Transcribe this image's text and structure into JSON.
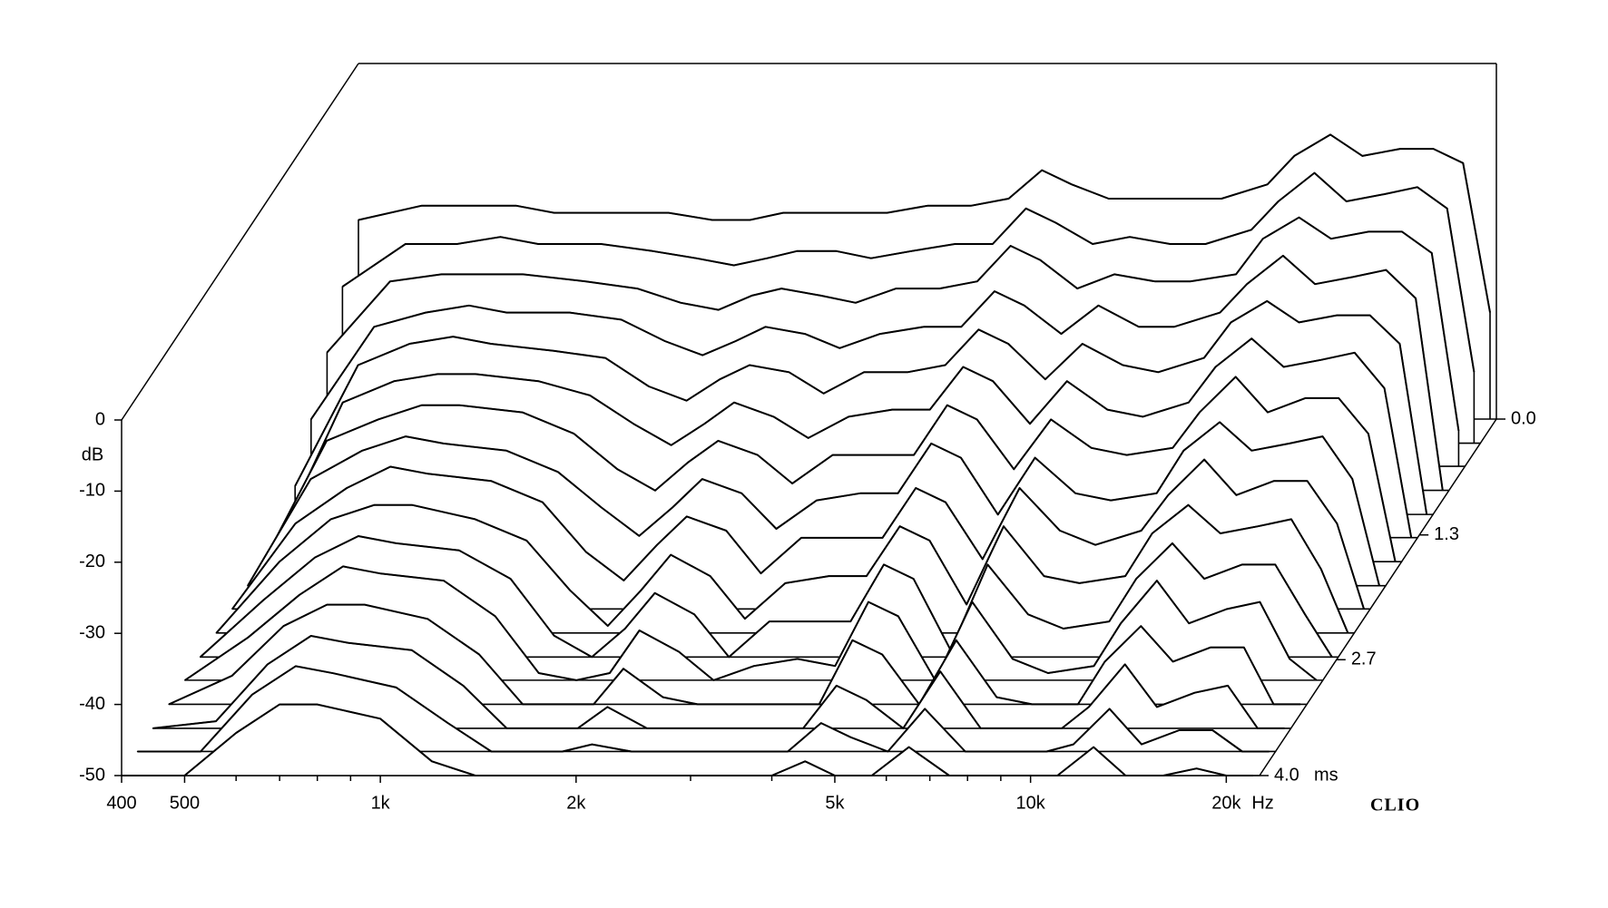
{
  "chart_data": {
    "type": "waterfall",
    "ylabel": "dB",
    "xunit": "Hz",
    "zunit": "ms",
    "brand": "CLIO",
    "xscale": "log",
    "xlim": [
      400,
      22500
    ],
    "ylim": [
      -50,
      0
    ],
    "zlim": [
      0,
      4
    ],
    "xticks": [
      400,
      500,
      {
        "value": 1000,
        "label": "1k"
      },
      {
        "value": 2000,
        "label": "2k"
      },
      {
        "value": 5000,
        "label": "5k"
      },
      {
        "value": 10000,
        "label": "10k"
      },
      {
        "value": 20000,
        "label": "20k"
      }
    ],
    "xminorticks": [
      600,
      700,
      800,
      900,
      3000,
      4000,
      6000,
      7000,
      8000,
      9000
    ],
    "yticks": [
      0,
      -10,
      -20,
      -30,
      -40,
      -50
    ],
    "zticks": [
      {
        "value": 0,
        "label": "0.0"
      },
      {
        "value": 1.3,
        "label": "1.3"
      },
      {
        "value": 2.7,
        "label": "2.7"
      },
      {
        "value": 4,
        "label": "4.0"
      }
    ],
    "color": "#000000",
    "x": [
      400,
      500,
      600,
      700,
      800,
      1000,
      1200,
      1400,
      1600,
      1800,
      2000,
      2300,
      2600,
      3000,
      3500,
      4000,
      4500,
      5000,
      5700,
      6500,
      7500,
      8500,
      10000,
      11000,
      12500,
      14000,
      16000,
      18000,
      20000,
      22000
    ],
    "z": [
      0,
      0.27,
      0.53,
      0.8,
      1.07,
      1.33,
      1.6,
      1.87,
      2.13,
      2.4,
      2.67,
      2.93,
      3.2,
      3.47,
      3.73,
      4
    ],
    "values": [
      [
        -22,
        -20,
        -20,
        -20,
        -21,
        -21,
        -21,
        -22,
        -22,
        -21,
        -21,
        -21,
        -21,
        -20,
        -20,
        -19,
        -15,
        -17,
        -19,
        -19,
        -19,
        -19,
        -17,
        -13,
        -10,
        -13,
        -12,
        -12,
        -14,
        -35
      ],
      [
        -28,
        -22,
        -22,
        -21,
        -22,
        -22,
        -23,
        -24,
        -25,
        -24,
        -23,
        -23,
        -24,
        -23,
        -22,
        -22,
        -17,
        -19,
        -22,
        -21,
        -22,
        -22,
        -20,
        -16,
        -12,
        -16,
        -15,
        -14,
        -17,
        -40
      ],
      [
        -34,
        -24,
        -23,
        -23,
        -23,
        -24,
        -25,
        -27,
        -28,
        -26,
        -25,
        -26,
        -27,
        -25,
        -25,
        -24,
        -19,
        -21,
        -25,
        -23,
        -24,
        -24,
        -23,
        -18,
        -15,
        -18,
        -17,
        -17,
        -20,
        -45
      ],
      [
        -40,
        -27,
        -25,
        -24,
        -25,
        -25,
        -26,
        -29,
        -31,
        -29,
        -27,
        -28,
        -30,
        -28,
        -27,
        -27,
        -22,
        -24,
        -28,
        -24,
        -27,
        -27,
        -25,
        -21,
        -17,
        -21,
        -20,
        -19,
        -23,
        -50
      ],
      [
        -46,
        -29,
        -26,
        -25,
        -26,
        -27,
        -28,
        -32,
        -34,
        -31,
        -29,
        -30,
        -33,
        -30,
        -30,
        -29,
        -24,
        -26,
        -31,
        -26,
        -29,
        -30,
        -28,
        -23,
        -20,
        -23,
        -22,
        -22,
        -26,
        -50
      ],
      [
        -50,
        -31,
        -28,
        -27,
        -27,
        -28,
        -30,
        -34,
        -37,
        -34,
        -31,
        -33,
        -36,
        -33,
        -32,
        -32,
        -26,
        -28,
        -34,
        -28,
        -32,
        -33,
        -31,
        -26,
        -22,
        -26,
        -25,
        -24,
        -29,
        -50
      ],
      [
        -50,
        -33,
        -30,
        -28,
        -28,
        -29,
        -32,
        -37,
        -40,
        -36,
        -33,
        -35,
        -39,
        -35,
        -35,
        -35,
        -28,
        -30,
        -37,
        -30,
        -34,
        -35,
        -34,
        -29,
        -24,
        -29,
        -27,
        -27,
        -32,
        -50
      ],
      [
        -50,
        -35,
        -31,
        -29,
        -30,
        -31,
        -34,
        -39,
        -43,
        -39,
        -35,
        -37,
        -42,
        -38,
        -37,
        -37,
        -30,
        -32,
        -40,
        -32,
        -37,
        -38,
        -37,
        -31,
        -27,
        -31,
        -30,
        -29,
        -35,
        -50
      ],
      [
        -50,
        -38,
        -33,
        -30,
        -31,
        -32,
        -35,
        -42,
        -46,
        -41,
        -37,
        -39,
        -45,
        -40,
        -40,
        -40,
        -33,
        -35,
        -43,
        -33,
        -39,
        -41,
        -39,
        -34,
        -29,
        -34,
        -32,
        -32,
        -38,
        -50
      ],
      [
        -50,
        -40,
        -34,
        -32,
        -32,
        -34,
        -37,
        -44,
        -49,
        -44,
        -39,
        -42,
        -48,
        -43,
        -42,
        -42,
        -35,
        -37,
        -46,
        -35,
        -42,
        -43,
        -42,
        -36,
        -32,
        -36,
        -35,
        -34,
        -41,
        -50
      ],
      [
        -50,
        -42,
        -36,
        -33,
        -34,
        -35,
        -39,
        -47,
        -50,
        -46,
        -41,
        -44,
        -50,
        -45,
        -45,
        -45,
        -37,
        -39,
        -49,
        -37,
        -44,
        -46,
        -45,
        -39,
        -34,
        -39,
        -37,
        -37,
        -44,
        -50
      ],
      [
        -50,
        -44,
        -38,
        -34,
        -35,
        -36,
        -41,
        -49,
        -50,
        -49,
        -43,
        -46,
        -50,
        -48,
        -47,
        -48,
        -39,
        -41,
        -50,
        -39,
        -47,
        -49,
        -48,
        -42,
        -36,
        -42,
        -40,
        -39,
        -47,
        -50
      ],
      [
        -50,
        -46,
        -39,
        -36,
        -36,
        -38,
        -43,
        -50,
        -50,
        -50,
        -45,
        -49,
        -50,
        -50,
        -50,
        -50,
        -41,
        -43,
        -50,
        -41,
        -49,
        -50,
        -50,
        -44,
        -39,
        -44,
        -42,
        -42,
        -50,
        -50
      ],
      [
        -50,
        -49,
        -41,
        -37,
        -38,
        -39,
        -44,
        -50,
        -50,
        -50,
        -47,
        -50,
        -50,
        -50,
        -50,
        -50,
        -44,
        -46,
        -50,
        -42,
        -50,
        -50,
        -50,
        -47,
        -41,
        -47,
        -45,
        -44,
        -50,
        -50
      ],
      [
        -50,
        -50,
        -42,
        -38,
        -39,
        -41,
        -46,
        -50,
        -50,
        -50,
        -49,
        -50,
        -50,
        -50,
        -50,
        -50,
        -46,
        -48,
        -50,
        -44,
        -50,
        -50,
        -50,
        -49,
        -44,
        -49,
        -47,
        -47,
        -50,
        -50
      ],
      [
        -50,
        -50,
        -44,
        -40,
        -40,
        -42,
        -48,
        -50,
        -50,
        -50,
        -50,
        -50,
        -50,
        -50,
        -50,
        -50,
        -48,
        -50,
        -50,
        -46,
        -50,
        -50,
        -50,
        -50,
        -46,
        -50,
        -50,
        -49,
        -50,
        -50
      ]
    ]
  }
}
